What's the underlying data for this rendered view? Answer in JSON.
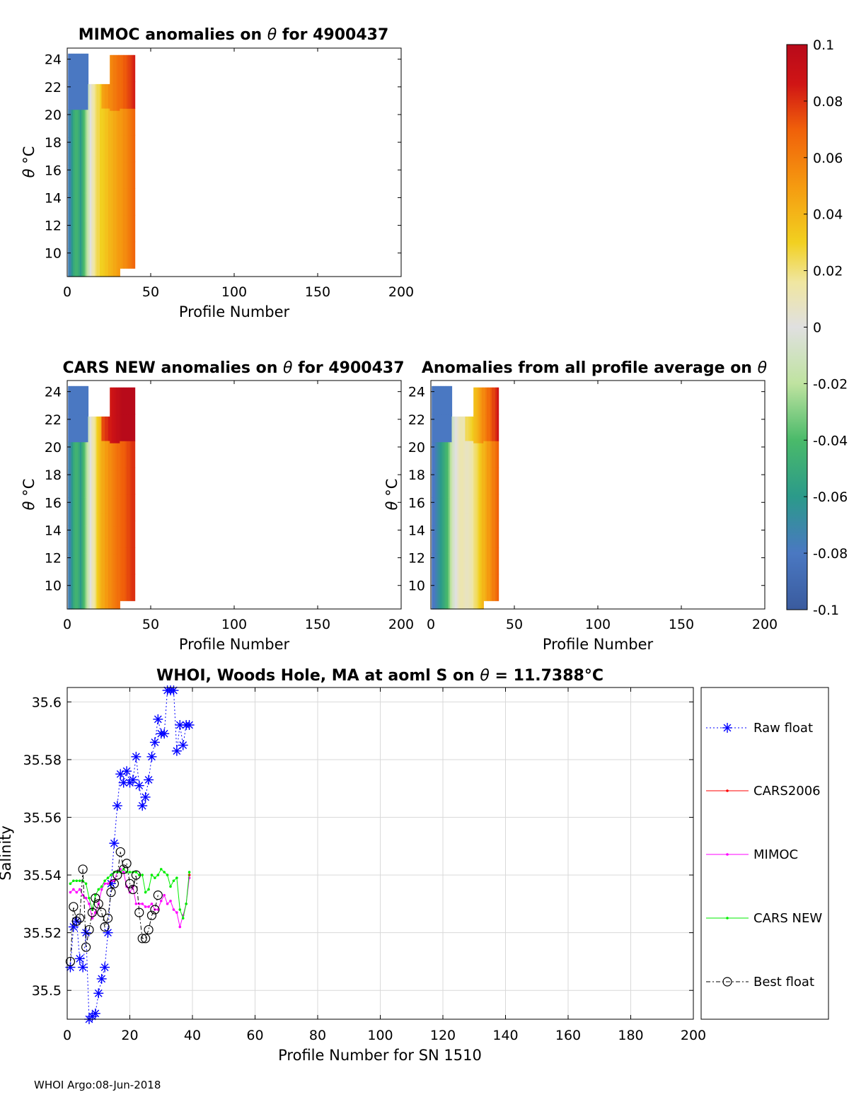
{
  "footer": "WHOI Argo:08-Jun-2018",
  "colors": {
    "raw_float": "#0000ff",
    "cars2006": "#ff0000",
    "mimoc": "#ff00ff",
    "cars_new": "#00ee00",
    "best_float": "#000000",
    "grid": "#d9d9d9"
  },
  "colorbar": {
    "ticks": [
      "0.1",
      "0.08",
      "0.06",
      "0.04",
      "0.02",
      "0",
      "-0.02",
      "-0.04",
      "-0.06",
      "-0.08",
      "-0.1"
    ],
    "range": [
      -0.1,
      0.1
    ]
  },
  "chart_data": [
    {
      "type": "heatmap",
      "title_main": "MIMOC anomalies on ",
      "title_theta": "θ",
      "title_rest": "  for 4900437",
      "ylabel_theta": "θ",
      "ylabel_unit": " °C",
      "xlabel": "Profile Number",
      "xlim": [
        0,
        200
      ],
      "ylim": [
        8.3,
        24.8
      ],
      "xticks": [
        "0",
        "50",
        "100",
        "150",
        "200"
      ],
      "yticks": [
        "10",
        "12",
        "14",
        "16",
        "18",
        "20",
        "22",
        "24"
      ],
      "column_anomaly": [
        -0.075,
        -0.07,
        -0.06,
        -0.05,
        -0.045,
        -0.045,
        -0.05,
        -0.06,
        -0.05,
        -0.04,
        -0.03,
        -0.02,
        -0.01,
        0.0,
        0.01,
        0.015,
        0.02,
        0.025,
        0.025,
        0.03,
        0.03,
        0.032,
        0.035,
        0.035,
        0.04,
        0.04,
        0.042,
        0.045,
        0.045,
        0.048,
        0.05,
        0.05,
        0.052,
        0.055,
        0.055,
        0.058,
        0.06,
        0.062,
        0.065,
        0.068
      ]
    },
    {
      "type": "heatmap",
      "title_main": "CARS NEW anomalies on ",
      "title_theta": "θ",
      "title_rest": " for 4900437",
      "ylabel_theta": "θ",
      "ylabel_unit": " °C",
      "xlabel": "Profile Number",
      "xlim": [
        0,
        200
      ],
      "ylim": [
        8.3,
        24.8
      ],
      "xticks": [
        "0",
        "50",
        "100",
        "150",
        "200"
      ],
      "yticks": [
        "10",
        "12",
        "14",
        "16",
        "18",
        "20",
        "22",
        "24"
      ],
      "column_anomaly": [
        -0.075,
        -0.07,
        -0.06,
        -0.05,
        -0.045,
        -0.045,
        -0.05,
        -0.06,
        -0.05,
        -0.04,
        -0.03,
        -0.02,
        -0.01,
        0.0,
        0.01,
        0.015,
        0.02,
        0.03,
        0.035,
        0.04,
        0.045,
        0.045,
        0.05,
        0.05,
        0.055,
        0.055,
        0.058,
        0.06,
        0.062,
        0.065,
        0.065,
        0.068,
        0.07,
        0.07,
        0.072,
        0.075,
        0.075,
        0.078,
        0.08,
        0.08
      ]
    },
    {
      "type": "heatmap",
      "title_main": "Anomalies from all profile average on ",
      "title_theta": "θ",
      "title_rest": "",
      "ylabel_theta": "θ",
      "ylabel_unit": " °C",
      "xlabel": "Profile Number",
      "xlim": [
        0,
        200
      ],
      "ylim": [
        8.3,
        24.8
      ],
      "xticks": [
        "0",
        "50",
        "100",
        "150",
        "200"
      ],
      "yticks": [
        "10",
        "12",
        "14",
        "16",
        "18",
        "20",
        "22",
        "24"
      ],
      "column_anomaly": [
        -0.08,
        -0.08,
        -0.075,
        -0.07,
        -0.065,
        -0.06,
        -0.055,
        -0.05,
        -0.045,
        -0.04,
        -0.03,
        -0.02,
        -0.01,
        -0.005,
        0.0,
        0.005,
        0.01,
        0.012,
        0.012,
        0.01,
        0.008,
        0.008,
        0.01,
        0.012,
        0.015,
        0.02,
        0.022,
        0.025,
        0.03,
        0.035,
        0.04,
        0.04,
        0.045,
        0.05,
        0.05,
        0.055,
        0.06,
        0.06,
        0.065,
        0.07
      ]
    },
    {
      "type": "line",
      "title_main": "WHOI, Woods Hole, MA at aoml S on ",
      "title_theta": "θ",
      "title_value": " = 11.7388",
      "title_unit": "°C",
      "xlabel": "Profile Number for SN 1510",
      "ylabel": "Salinity",
      "xlim": [
        0,
        200
      ],
      "ylim": [
        35.49,
        35.605
      ],
      "xticks": [
        0,
        20,
        40,
        60,
        80,
        100,
        120,
        140,
        160,
        180,
        200
      ],
      "yticks": [
        35.5,
        35.52,
        35.54,
        35.56,
        35.58,
        35.6
      ],
      "ytick_labels": [
        "35.5",
        "35.52",
        "35.54",
        "35.56",
        "35.58",
        "35.6"
      ],
      "legend_position": "right",
      "series": [
        {
          "name": "Raw float",
          "x": [
            1,
            2,
            3,
            4,
            5,
            6,
            7,
            8,
            9,
            10,
            11,
            12,
            13,
            14,
            15,
            16,
            17,
            18,
            19,
            20,
            21,
            22,
            23,
            24,
            25,
            26,
            27,
            28,
            29,
            30,
            31,
            32,
            33,
            34,
            35,
            36,
            37,
            38,
            39
          ],
          "y": [
            35.508,
            35.522,
            35.524,
            35.511,
            35.508,
            35.52,
            35.49,
            35.491,
            35.492,
            35.499,
            35.504,
            35.508,
            35.52,
            35.537,
            35.551,
            35.564,
            35.575,
            35.572,
            35.576,
            35.572,
            35.573,
            35.581,
            35.571,
            35.564,
            35.567,
            35.573,
            35.581,
            35.586,
            35.594,
            35.589,
            35.589,
            35.604,
            35.604,
            35.604,
            35.583,
            35.592,
            35.585,
            35.592,
            35.592
          ]
        },
        {
          "name": "CARS2006",
          "x": [
            39
          ],
          "y": [
            35.54
          ]
        },
        {
          "name": "MIMOC",
          "x": [
            1,
            2,
            3,
            4,
            5,
            6,
            7,
            8,
            9,
            10,
            11,
            12,
            13,
            14,
            15,
            16,
            17,
            18,
            19,
            20,
            21,
            22,
            23,
            24,
            25,
            26,
            27,
            28,
            29,
            30,
            31,
            32,
            33,
            34,
            35,
            36,
            37,
            38,
            39
          ],
          "y": [
            35.534,
            35.535,
            35.534,
            35.535,
            35.533,
            35.532,
            35.53,
            35.525,
            35.527,
            35.53,
            35.535,
            35.537,
            35.537,
            35.538,
            35.538,
            35.541,
            35.542,
            35.541,
            35.536,
            35.534,
            35.536,
            35.53,
            35.53,
            35.53,
            35.529,
            35.529,
            35.53,
            35.528,
            35.528,
            35.531,
            35.533,
            35.53,
            35.531,
            35.528,
            35.527,
            35.522,
            35.526,
            35.53,
            35.539
          ]
        },
        {
          "name": "CARS NEW",
          "x": [
            1,
            2,
            3,
            4,
            5,
            6,
            7,
            8,
            9,
            10,
            11,
            12,
            13,
            14,
            15,
            16,
            17,
            18,
            19,
            20,
            21,
            22,
            23,
            24,
            25,
            26,
            27,
            28,
            29,
            30,
            31,
            32,
            33,
            34,
            35,
            36,
            37,
            38,
            39
          ],
          "y": [
            35.537,
            35.538,
            35.538,
            35.538,
            35.538,
            35.537,
            35.532,
            35.528,
            35.533,
            35.535,
            35.536,
            35.538,
            35.539,
            35.54,
            35.541,
            35.541,
            35.541,
            35.542,
            35.541,
            35.541,
            35.541,
            35.541,
            35.54,
            35.54,
            35.534,
            35.535,
            35.54,
            35.539,
            35.54,
            35.542,
            35.541,
            35.54,
            35.536,
            35.538,
            35.539,
            35.528,
            35.525,
            35.53,
            35.541
          ]
        },
        {
          "name": "Best float",
          "x": [
            1,
            2,
            3,
            4,
            5,
            6,
            7,
            8,
            9,
            10,
            11,
            12,
            13,
            14,
            15,
            16,
            17,
            18,
            19,
            20,
            21,
            22,
            23,
            24,
            25,
            26,
            27,
            28,
            29
          ],
          "y": [
            35.51,
            35.529,
            35.524,
            35.525,
            35.542,
            35.515,
            35.521,
            35.527,
            35.532,
            35.53,
            35.527,
            35.522,
            35.525,
            35.534,
            35.537,
            35.54,
            35.548,
            35.542,
            35.544,
            35.537,
            35.535,
            35.54,
            35.527,
            35.518,
            35.518,
            35.521,
            35.526,
            35.528,
            35.533
          ]
        }
      ]
    }
  ]
}
